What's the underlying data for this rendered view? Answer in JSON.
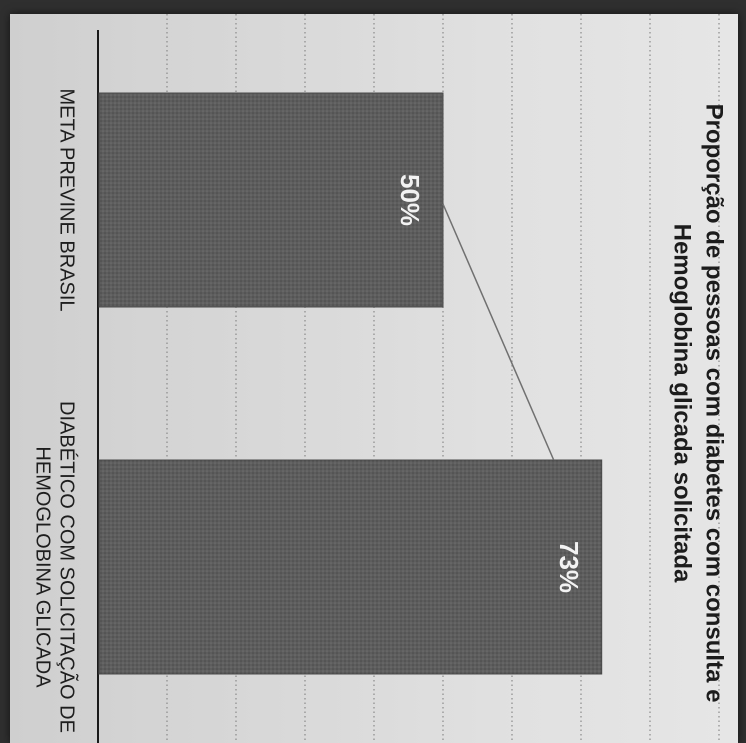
{
  "chart_data": {
    "type": "bar",
    "orientation": "vertical",
    "title_lines": [
      "Proporção de pessoas com diabetes com consulta e",
      "Hemoglobina glicada solicitada"
    ],
    "categories": [
      [
        "META PREVINE BRASIL"
      ],
      [
        "DIABÉTICO COM SOLICITAÇÃO DE",
        "HEMOGLOBINA GLICADA"
      ]
    ],
    "values": [
      50,
      73
    ],
    "data_labels": [
      "50%",
      "73%"
    ],
    "ylim": [
      0,
      100
    ],
    "grid": true,
    "bar_color": "#5b5b5b",
    "rotated": "90deg-clockwise"
  }
}
